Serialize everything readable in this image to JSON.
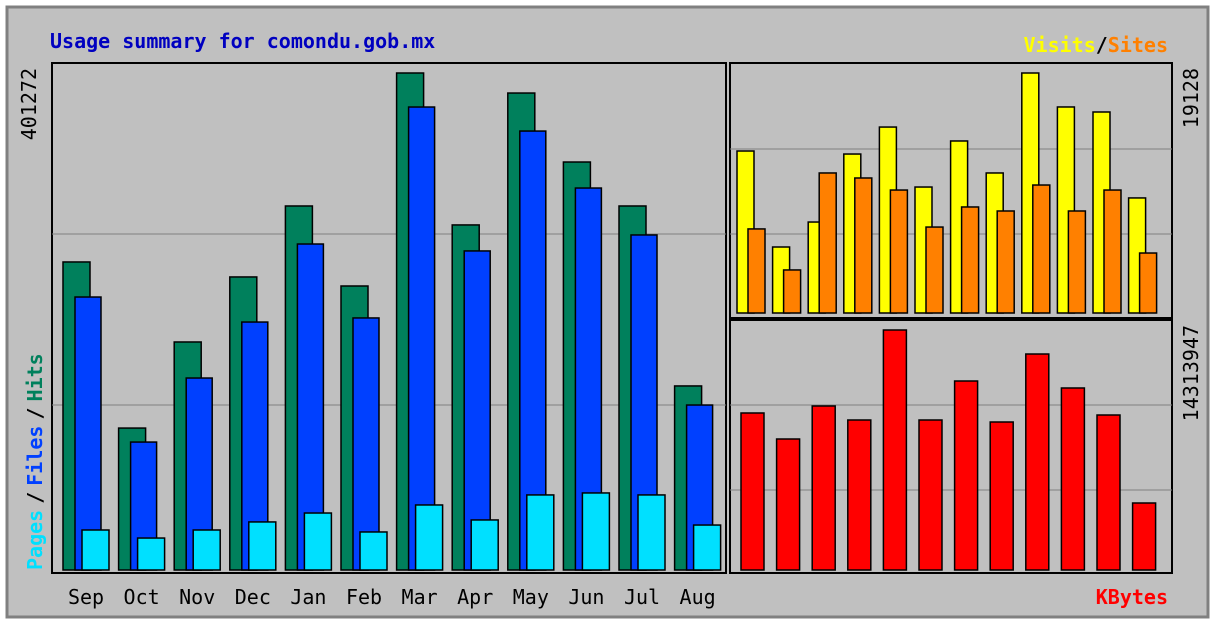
{
  "title": "Usage summary for comondu.gob.mx",
  "separator": "/",
  "chart_data": [
    {
      "type": "bar",
      "categories": [
        "Sep",
        "Oct",
        "Nov",
        "Dec",
        "Jan",
        "Feb",
        "Mar",
        "Apr",
        "May",
        "Jun",
        "Jul",
        "Aug"
      ],
      "series": [
        {
          "name": "Hits",
          "color": "#00805c",
          "values": [
            248700,
            114600,
            184100,
            236600,
            293900,
            229300,
            401272,
            278600,
            385100,
            329400,
            293900,
            148600
          ]
        },
        {
          "name": "Files",
          "color": "#0040ff",
          "values": [
            220400,
            103300,
            155000,
            200200,
            263200,
            203500,
            373800,
            257600,
            354400,
            308400,
            270500,
            133200
          ]
        },
        {
          "name": "Pages",
          "color": "#00e0ff",
          "values": [
            32300,
            25800,
            32300,
            38800,
            46000,
            30700,
            52500,
            40400,
            60600,
            62200,
            60600,
            36300
          ]
        }
      ],
      "ylim": [
        0,
        401272
      ],
      "yticks": [
        401272
      ]
    },
    {
      "type": "bar",
      "series": [
        {
          "name": "Visits",
          "color": "#ffff00",
          "values": [
            12910,
            5260,
            7250,
            12670,
            14820,
            10040,
            13710,
            11160,
            19128,
            16420,
            16020,
            9170
          ]
        },
        {
          "name": "Sites",
          "color": "#ff8000",
          "values": [
            6700,
            3430,
            11160,
            10760,
            9800,
            6850,
            8450,
            8130,
            10200,
            8130,
            9800,
            4780
          ]
        }
      ],
      "ylim": [
        0,
        19128
      ],
      "yticks": [
        19128
      ]
    },
    {
      "type": "bar",
      "series": [
        {
          "name": "KBytes",
          "color": "#ff0000",
          "values": [
            9364000,
            7813000,
            9781000,
            8946000,
            14313947,
            8946000,
            11272000,
            8827000,
            12882000,
            10855000,
            9244000,
            3996000
          ]
        }
      ],
      "ylim": [
        0,
        14313947
      ],
      "yticks": [
        14313947
      ]
    }
  ]
}
